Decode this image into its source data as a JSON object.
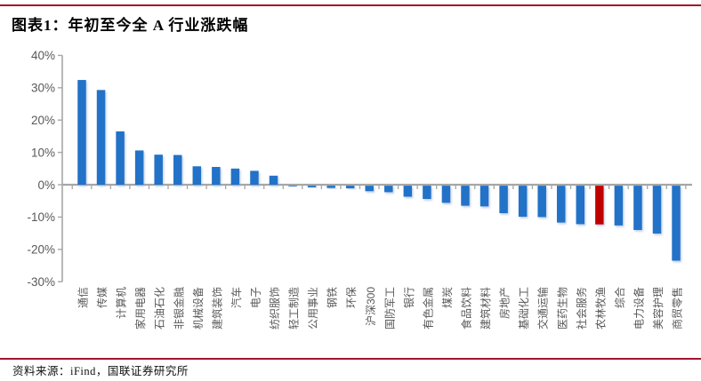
{
  "header": {
    "title": "图表1：年初至今全 A 行业涨跌幅"
  },
  "footer": {
    "source": "资料来源：iFind，国联证券研究所"
  },
  "chart_data": {
    "type": "bar",
    "title": "年初至今全A行业涨跌幅",
    "categories": [
      "通信",
      "传媒",
      "计算机",
      "家用电器",
      "石油石化",
      "非银金融",
      "机械设备",
      "建筑装饰",
      "汽车",
      "电子",
      "纺织服饰",
      "轻工制造",
      "公用事业",
      "钢铁",
      "环保",
      "沪深300",
      "国防军工",
      "银行",
      "有色金属",
      "煤炭",
      "食品饮料",
      "建筑材料",
      "房地产",
      "基础化工",
      "交通运输",
      "医药生物",
      "社会服务",
      "农林牧渔",
      "综合",
      "电力设备",
      "美容护理",
      "商贸零售"
    ],
    "values": [
      32.4,
      29.3,
      16.5,
      10.6,
      9.3,
      9.2,
      5.7,
      5.5,
      5.0,
      4.3,
      2.8,
      -0.2,
      -0.5,
      -0.7,
      -0.8,
      -1.7,
      -2.0,
      -3.4,
      -4.1,
      -5.3,
      -6.2,
      -6.4,
      -8.5,
      -9.6,
      -9.7,
      -11.4,
      -11.9,
      -12.0,
      -12.3,
      -13.7,
      -14.8,
      -23.2
    ],
    "highlight_category": "农林牧渔",
    "unit": "%",
    "ylim": [
      -30,
      40
    ],
    "yticks": [
      40,
      30,
      20,
      10,
      0,
      -10,
      -20,
      -30
    ],
    "ytick_suffix": "%",
    "grid": false,
    "legend": false,
    "xlabel": "",
    "ylabel": "",
    "colors": {
      "bar": "#2172C7",
      "highlight": "#C00000",
      "axis": "#A6A6A6",
      "tick_label": "#595959",
      "rule": "#A3132E"
    }
  }
}
